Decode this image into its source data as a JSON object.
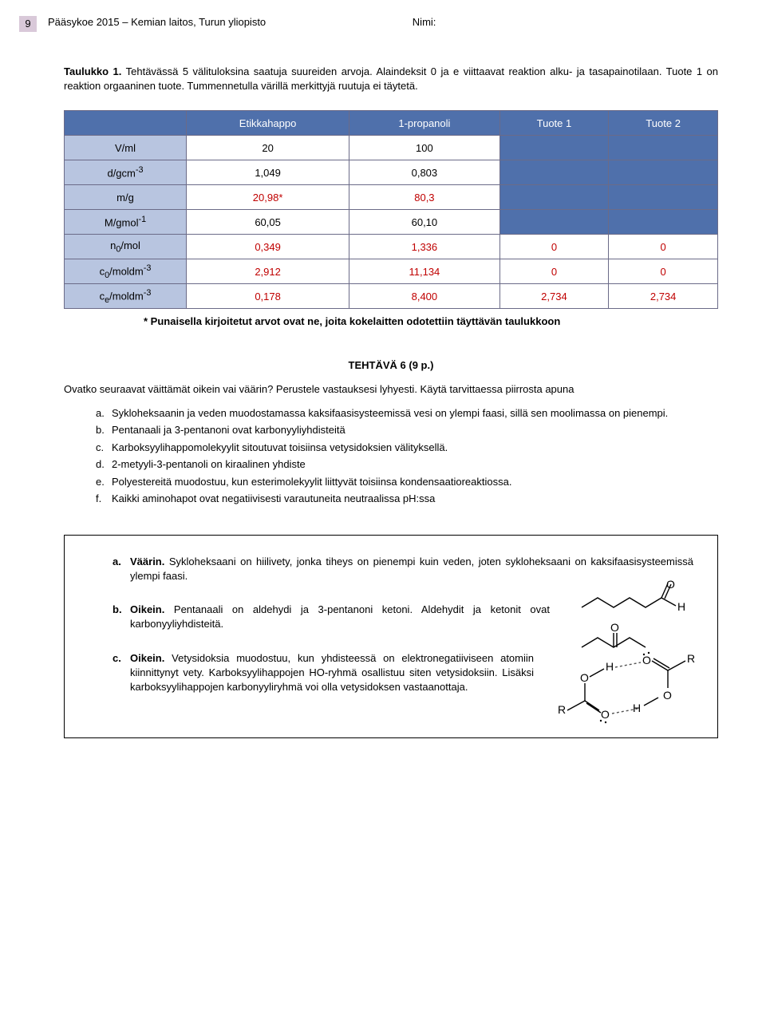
{
  "page_number": "9",
  "header": {
    "text": "Pääsykoe  2015 – Kemian laitos, Turun yliopisto",
    "nimi_label": "Nimi:"
  },
  "taulukko1": {
    "title_bold": "Taulukko 1.",
    "title_rest": " Tehtävässä 5 välituloksina saatuja suureiden arvoja. Alaindeksit 0 ja e viittaavat reaktion alku- ja tasapainotilaan. Tuote 1 on reaktion orgaaninen tuote. Tummennetulla värillä merkittyjä ruutuja ei täytetä."
  },
  "table": {
    "headers": [
      "",
      "Etikkahappo",
      "1-propanoli",
      "Tuote 1",
      "Tuote 2"
    ],
    "rows": [
      {
        "label_html": "V/ml",
        "cells": [
          "20",
          "100",
          "",
          ""
        ],
        "shade": [
          false,
          false,
          true,
          true
        ],
        "red": [
          false,
          false,
          false,
          false
        ]
      },
      {
        "label_html": "d/gcm<sup>-3</sup>",
        "cells": [
          "1,049",
          "0,803",
          "",
          ""
        ],
        "shade": [
          false,
          false,
          true,
          true
        ],
        "red": [
          false,
          false,
          false,
          false
        ]
      },
      {
        "label_html": "m/g",
        "cells": [
          "20,98*",
          "80,3",
          "",
          ""
        ],
        "shade": [
          false,
          false,
          true,
          true
        ],
        "red": [
          true,
          true,
          false,
          false
        ]
      },
      {
        "label_html": "M/gmol<sup>-1</sup>",
        "cells": [
          "60,05",
          "60,10",
          "",
          ""
        ],
        "shade": [
          false,
          false,
          true,
          true
        ],
        "red": [
          false,
          false,
          false,
          false
        ]
      },
      {
        "label_html": "n<sub>0</sub>/mol",
        "cells": [
          "0,349",
          "1,336",
          "0",
          "0"
        ],
        "shade": [
          false,
          false,
          false,
          false
        ],
        "red": [
          true,
          true,
          true,
          true
        ]
      },
      {
        "label_html": "c<sub>0</sub>/moldm<sup>-3</sup>",
        "cells": [
          "2,912",
          "11,134",
          "0",
          "0"
        ],
        "shade": [
          false,
          false,
          false,
          false
        ],
        "red": [
          true,
          true,
          true,
          true
        ]
      },
      {
        "label_html": "c<sub>e</sub>/moldm<sup>-3</sup>",
        "cells": [
          "0,178",
          "8,400",
          "2,734",
          "2,734"
        ],
        "shade": [
          false,
          false,
          false,
          false
        ],
        "red": [
          true,
          true,
          true,
          true
        ]
      }
    ],
    "footnote": "* Punaisella kirjoitetut arvot ovat ne, joita kokelaitten odotettiin täyttävän taulukkoon",
    "colors": {
      "header_bg": "#4f70ab",
      "header_fg": "#ffffff",
      "rowlabel_bg": "#b8c5e0",
      "shade_bg": "#4f70ab",
      "red_text": "#c00000",
      "border": "#6b6b88"
    }
  },
  "task6": {
    "title": "TEHTÄVÄ 6 (9 p.)",
    "intro": "Ovatko seuraavat väittämät oikein vai väärin? Perustele vastauksesi lyhyesti. Käytä tarvittaessa piirrosta apuna",
    "items": [
      "Sykloheksaanin ja veden muodostamassa kaksifaasisysteemissä vesi on ylempi faasi, sillä sen moolimassa on pienempi.",
      "Pentanaali ja 3-pentanoni ovat karbonyyliyhdisteitä",
      "Karboksyylihappomolekyylit sitoutuvat toisiinsa vetysidoksien välityksellä.",
      "2-metyyli-3-pentanoli on kiraalinen yhdiste",
      "Polyestereitä muodostuu, kun esterimolekyylit liittyvät toisiinsa kondensaatioreaktiossa.",
      "Kaikki aminohapot ovat negatiivisesti varautuneita neutraalissa pH:ssa"
    ]
  },
  "answers": {
    "a": {
      "verdict": "Väärin.",
      "text": " Sykloheksaani on hiilivety, jonka tiheys on pienempi kuin veden, joten sykloheksaani on kaksifaasisysteemissä ylempi faasi."
    },
    "b": {
      "verdict": "Oikein.",
      "text": " Pentanaali on aldehydi ja 3-pentanoni ketoni. Aldehydit ja ketonit ovat karbonyyliyhdisteitä."
    },
    "c": {
      "verdict": "Oikein.",
      "text": " Vetysidoksia muodostuu, kun yhdisteessä on elektronegatiiviseen atomiin kiinnittynyt vety. Karboksyylihappojen HO-ryhmä osallistuu siten vetysidoksiin. Lisäksi karboksyylihappojen karbonyyliryhmä voi olla vetysidoksen vastaanottaja."
    }
  }
}
